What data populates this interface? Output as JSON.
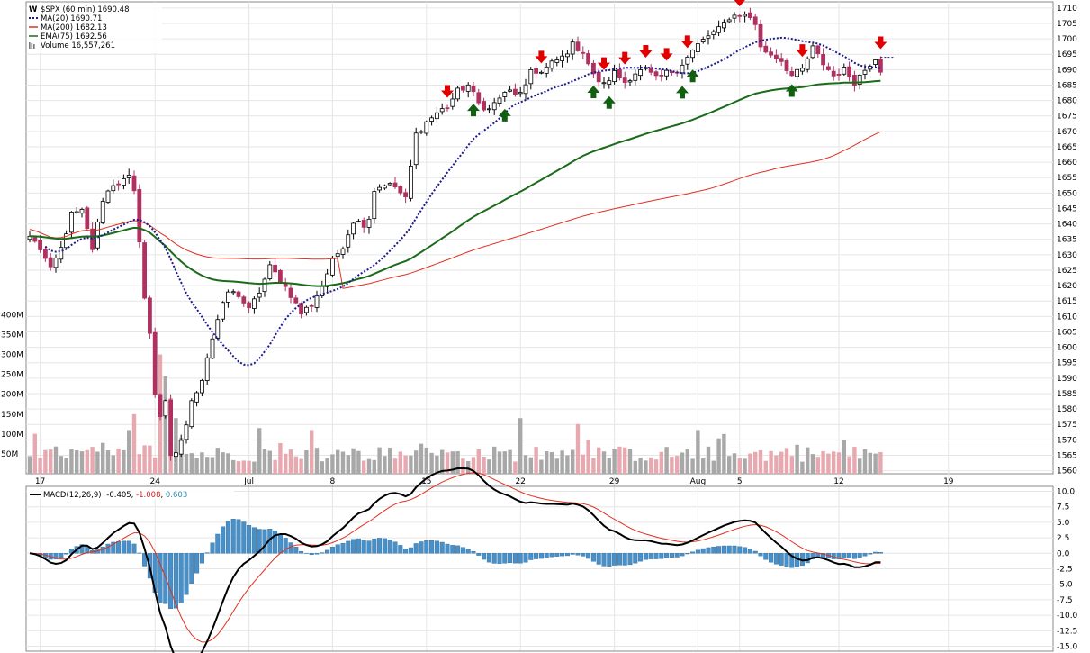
{
  "chart_data": {
    "type": "candlestick",
    "price_panel": {
      "title": "$SPX (60 min) 1690.48",
      "legend": [
        {
          "label": "MA(20) 1690.71",
          "color": "#1a1a8c",
          "style": "dotted"
        },
        {
          "label": "MA(200) 1682.13",
          "color": "#e03020",
          "style": "solid"
        },
        {
          "label": "EMA(75) 1692.56",
          "color": "#1a6b1a",
          "style": "solid"
        },
        {
          "label": "Volume 16,557,261",
          "color": "#777777",
          "style": "bars"
        }
      ],
      "y_ticks": [
        1710,
        1705,
        1700,
        1695,
        1690,
        1685,
        1680,
        1675,
        1670,
        1665,
        1660,
        1655,
        1650,
        1645,
        1640,
        1635,
        1630,
        1625,
        1620,
        1615,
        1610,
        1605,
        1600,
        1595,
        1590,
        1585,
        1580,
        1575,
        1570,
        1565,
        1560
      ],
      "ylim": [
        1559,
        1712
      ],
      "volume_ticks": [
        "400M",
        "350M",
        "300M",
        "250M",
        "200M",
        "150M",
        "100M",
        "50M"
      ],
      "volume_tick_values": [
        400,
        350,
        300,
        250,
        200,
        150,
        100,
        50
      ],
      "volume_ylim": [
        0,
        410
      ],
      "x_labels": [
        "17",
        "24",
        "Jul",
        "8",
        "15",
        "22",
        "29",
        "Aug",
        "5",
        "12",
        "19"
      ],
      "x_label_bars": [
        2,
        24,
        42,
        58,
        76,
        94,
        112,
        128,
        136,
        155,
        176
      ],
      "anchors_close": [
        [
          0,
          1636
        ],
        [
          2,
          1632
        ],
        [
          4,
          1625
        ],
        [
          6,
          1632
        ],
        [
          8,
          1643
        ],
        [
          10,
          1644
        ],
        [
          12,
          1632
        ],
        [
          14,
          1648
        ],
        [
          16,
          1653
        ],
        [
          18,
          1654
        ],
        [
          19,
          1655
        ],
        [
          20,
          1650
        ],
        [
          21,
          1635
        ],
        [
          22,
          1616
        ],
        [
          23,
          1604
        ],
        [
          24,
          1585
        ],
        [
          25,
          1578
        ],
        [
          26,
          1583
        ],
        [
          27,
          1564
        ],
        [
          28,
          1565
        ],
        [
          29,
          1570
        ],
        [
          30,
          1575
        ],
        [
          31,
          1582
        ],
        [
          32,
          1586
        ],
        [
          33,
          1590
        ],
        [
          34,
          1597
        ],
        [
          35,
          1603
        ],
        [
          36,
          1609
        ],
        [
          38,
          1618
        ],
        [
          40,
          1617
        ],
        [
          42,
          1612
        ],
        [
          44,
          1618
        ],
        [
          46,
          1626
        ],
        [
          48,
          1622
        ],
        [
          50,
          1617
        ],
        [
          52,
          1611
        ],
        [
          54,
          1614
        ],
        [
          56,
          1620
        ],
        [
          58,
          1628
        ],
        [
          60,
          1633
        ],
        [
          62,
          1641
        ],
        [
          64,
          1640
        ],
        [
          65,
          1642
        ],
        [
          66,
          1651
        ],
        [
          68,
          1653
        ],
        [
          70,
          1652
        ],
        [
          72,
          1648
        ],
        [
          74,
          1669
        ],
        [
          76,
          1673
        ],
        [
          78,
          1676
        ],
        [
          80,
          1678
        ],
        [
          82,
          1683
        ],
        [
          84,
          1685
        ],
        [
          86,
          1679
        ],
        [
          88,
          1677
        ],
        [
          90,
          1681
        ],
        [
          92,
          1683
        ],
        [
          94,
          1682
        ],
        [
          95,
          1684
        ],
        [
          96,
          1690
        ],
        [
          98,
          1689
        ],
        [
          100,
          1692
        ],
        [
          102,
          1694
        ],
        [
          104,
          1698
        ],
        [
          106,
          1696
        ],
        [
          108,
          1688
        ],
        [
          110,
          1685
        ],
        [
          112,
          1689
        ],
        [
          114,
          1686
        ],
        [
          116,
          1689
        ],
        [
          118,
          1690
        ],
        [
          120,
          1687
        ],
        [
          122,
          1689
        ],
        [
          124,
          1690
        ],
        [
          126,
          1694
        ],
        [
          128,
          1698
        ],
        [
          130,
          1701
        ],
        [
          132,
          1703
        ],
        [
          134,
          1707
        ],
        [
          136,
          1708
        ],
        [
          138,
          1707
        ],
        [
          139,
          1705
        ],
        [
          140,
          1697
        ],
        [
          142,
          1695
        ],
        [
          144,
          1693
        ],
        [
          146,
          1688
        ],
        [
          148,
          1690
        ],
        [
          150,
          1697
        ],
        [
          152,
          1692
        ],
        [
          154,
          1688
        ],
        [
          156,
          1690
        ],
        [
          158,
          1686
        ],
        [
          160,
          1690
        ],
        [
          162,
          1694
        ],
        [
          163,
          1690
        ]
      ],
      "red_arrow_bars": [
        80,
        98,
        110,
        114,
        118,
        122,
        126,
        136,
        148,
        163
      ],
      "green_arrow_bars": [
        85,
        91,
        108,
        111,
        125,
        127,
        146
      ]
    },
    "macd_panel": {
      "legend": {
        "name": "MACD(12,26,9)",
        "macd": "-0.405",
        "signal": "-1.008",
        "hist": "0.603"
      },
      "y_ticks": [
        "10.0",
        "7.5",
        "5.0",
        "2.5",
        "0.0",
        "-2.5",
        "-5.0",
        "-7.5",
        "-10.0",
        "-12.5",
        "-15.0"
      ],
      "y_tick_values": [
        10,
        7.5,
        5,
        2.5,
        0,
        -2.5,
        -5,
        -7.5,
        -10,
        -12.5,
        -15
      ],
      "ylim": [
        -15.8,
        10.8
      ]
    },
    "colors": {
      "up": "#ffffff",
      "down": "#b03060",
      "macd_line": "#000000",
      "signal_line": "#e03020",
      "histogram": "#4a90c8",
      "ma20": "#1a1a8c",
      "ma200": "#e03020",
      "ema75": "#1a6b1a",
      "vol_up": "#a8a8a8",
      "vol_down": "#e8a8b0",
      "arrow_red": "#e00000",
      "arrow_green": "#106010"
    }
  }
}
